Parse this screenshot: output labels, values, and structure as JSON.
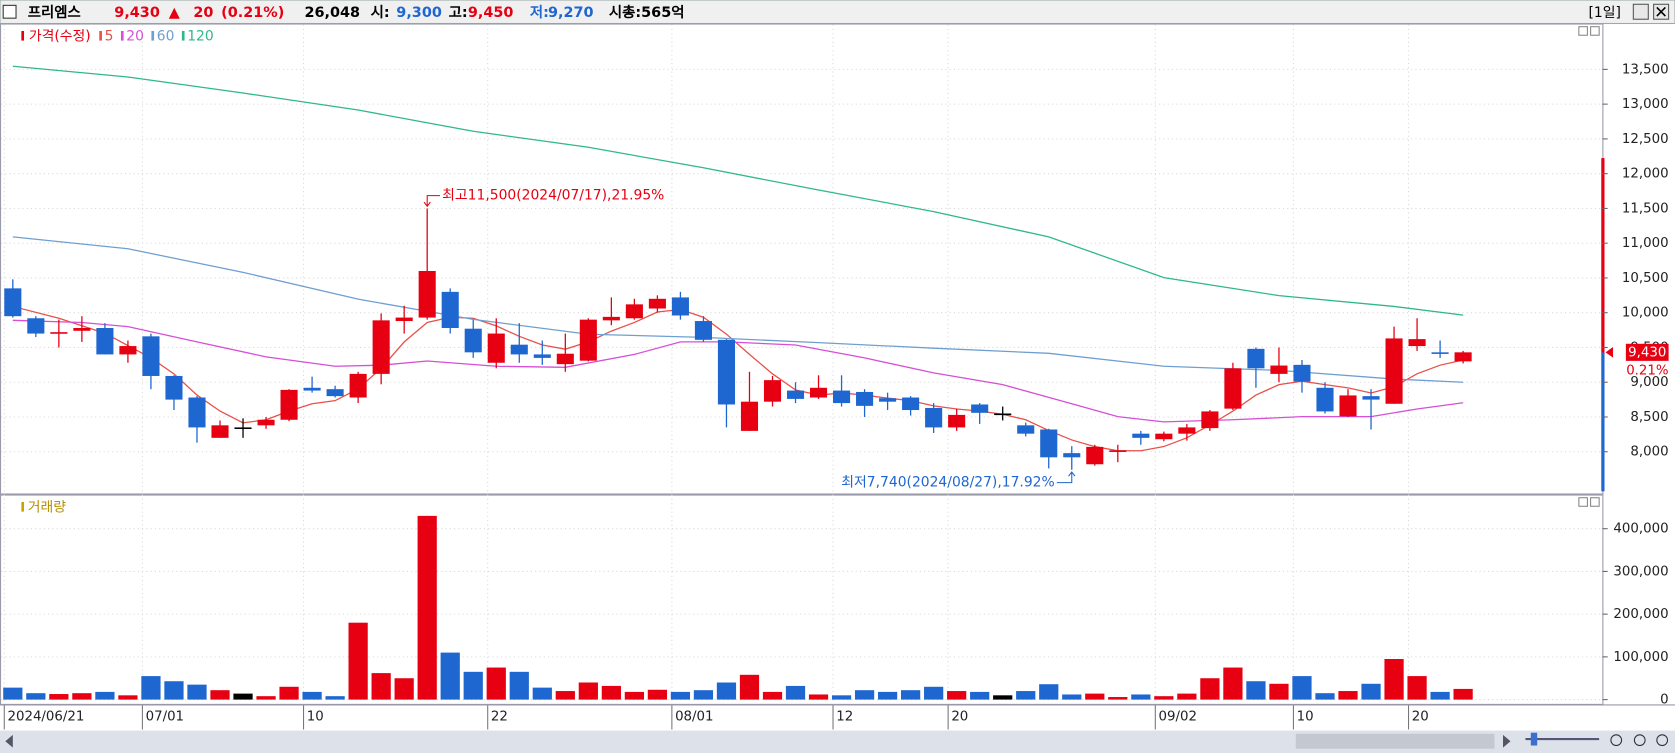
{
  "header": {
    "name": "프리엠스",
    "price": "9,430",
    "change_sign": "▲",
    "change": "20",
    "change_rate": "(0.21%)",
    "volume": "26,048",
    "open_label": "시:",
    "open": "9,300",
    "high_label": "고:",
    "high": "9,450",
    "low_label": "저:",
    "low": "9,270",
    "market_cap": "시총:565억",
    "period": "[1일]"
  },
  "chart_data": [
    {
      "type": "candlestick",
      "legend_title": "가격(수정)",
      "up_color": "#e60012",
      "down_color": "#1e66d0",
      "flat_color": "#000000",
      "open": [
        10350,
        9920,
        9700,
        9740,
        9780,
        9400,
        9660,
        9090,
        8780,
        8200,
        8350,
        8380,
        8460,
        8920,
        8900,
        8780,
        9120,
        9880,
        9930,
        10300,
        9770,
        9280,
        9540,
        9400,
        9260,
        9310,
        9890,
        9920,
        10060,
        10220,
        9880,
        9610,
        8300,
        8720,
        8880,
        8780,
        8880,
        8860,
        8770,
        8780,
        8630,
        8350,
        8680,
        8550,
        8380,
        8320,
        7980,
        7820,
        8000,
        8260,
        8180,
        8260,
        8340,
        8620,
        9480,
        9120,
        9250,
        8920,
        8510,
        8800,
        8690,
        9520,
        9430,
        9300
      ],
      "high": [
        10480,
        9950,
        9900,
        9950,
        9850,
        9600,
        9700,
        9100,
        8800,
        8450,
        8480,
        8500,
        8900,
        9080,
        8950,
        9150,
        9990,
        10100,
        11500,
        10350,
        9900,
        9920,
        9850,
        9600,
        9700,
        9920,
        10220,
        10200,
        10250,
        10300,
        9950,
        9620,
        9150,
        9090,
        9000,
        9100,
        9100,
        8900,
        8850,
        8800,
        8700,
        8620,
        8700,
        8650,
        8420,
        8330,
        8080,
        8100,
        8100,
        8300,
        8290,
        8400,
        8600,
        9280,
        9500,
        9500,
        9320,
        9000,
        8900,
        8900,
        9800,
        9920,
        9600,
        9450
      ],
      "low": [
        9930,
        9650,
        9500,
        9580,
        9400,
        9280,
        8900,
        8600,
        8130,
        8200,
        8200,
        8330,
        8440,
        8850,
        8780,
        8700,
        8970,
        9700,
        9900,
        9700,
        9350,
        9200,
        9280,
        9250,
        9150,
        9300,
        9820,
        9900,
        10000,
        9900,
        9580,
        8350,
        8300,
        8650,
        8700,
        8760,
        8650,
        8500,
        8600,
        8520,
        8270,
        8300,
        8400,
        8450,
        8220,
        7760,
        7740,
        7800,
        7850,
        8100,
        8150,
        8160,
        8300,
        8600,
        8920,
        9000,
        8850,
        8550,
        8500,
        8320,
        8690,
        9450,
        9350,
        9270
      ],
      "close": [
        9950,
        9700,
        9720,
        9780,
        9400,
        9520,
        9090,
        8750,
        8350,
        8380,
        8350,
        8460,
        8890,
        8880,
        8800,
        9120,
        9890,
        9930,
        10600,
        9780,
        9430,
        9700,
        9400,
        9350,
        9410,
        9900,
        9940,
        10120,
        10200,
        9960,
        9610,
        8680,
        8720,
        9030,
        8760,
        8920,
        8700,
        8660,
        8720,
        8600,
        8350,
        8530,
        8560,
        8550,
        8260,
        7920,
        7920,
        8070,
        8020,
        8200,
        8260,
        8350,
        8580,
        9200,
        9200,
        9240,
        9010,
        8580,
        8810,
        8750,
        9630,
        9620,
        9410,
        9430
      ],
      "lines": [
        {
          "name": "5",
          "color": "#e8504a",
          "x": [
            0,
            2,
            4,
            6,
            7,
            8,
            9,
            10,
            11,
            12,
            13,
            14,
            15,
            16,
            17,
            18,
            19,
            20,
            21,
            22,
            23,
            24,
            25,
            26,
            27,
            28,
            29,
            30,
            31,
            32,
            33,
            34,
            35,
            36,
            37,
            38,
            39,
            40,
            41,
            42,
            43,
            44,
            45,
            46,
            47,
            48,
            49,
            50,
            51,
            52,
            53,
            54,
            55,
            56,
            57,
            58,
            59,
            60,
            61,
            62,
            63
          ],
          "values": [
            10090,
            9920,
            9705,
            9350,
            9120,
            8815,
            8585,
            8415,
            8460,
            8585,
            8690,
            8735,
            8905,
            9200,
            9580,
            9860,
            9935,
            9920,
            9810,
            9660,
            9535,
            9475,
            9580,
            9735,
            9860,
            10010,
            10045,
            9935,
            9690,
            9400,
            9120,
            8890,
            8815,
            8845,
            8815,
            8770,
            8735,
            8660,
            8615,
            8585,
            8540,
            8460,
            8305,
            8170,
            8075,
            8015,
            8015,
            8075,
            8200,
            8385,
            8585,
            8815,
            8965,
            9015,
            8965,
            8920,
            8845,
            8935,
            9120,
            9245,
            9320
          ]
        },
        {
          "name": "20",
          "color": "#d64fd6",
          "x": [
            0,
            3,
            5,
            8,
            11,
            14,
            16,
            18,
            21,
            24,
            27,
            29,
            31,
            34,
            37,
            40,
            43,
            46,
            48,
            50,
            53,
            56,
            59,
            61,
            63
          ],
          "values": [
            9890,
            9860,
            9800,
            9580,
            9365,
            9230,
            9245,
            9305,
            9230,
            9215,
            9400,
            9580,
            9580,
            9535,
            9350,
            9135,
            8965,
            8690,
            8505,
            8430,
            8460,
            8505,
            8505,
            8615,
            8705
          ]
        },
        {
          "name": "60",
          "color": "#6f9fd0",
          "x": [
            0,
            5,
            10,
            15,
            20,
            25,
            30,
            35,
            40,
            45,
            50,
            55,
            60,
            63
          ],
          "values": [
            11090,
            10920,
            10580,
            10195,
            9905,
            9690,
            9645,
            9570,
            9490,
            9415,
            9230,
            9170,
            9045,
            9000
          ]
        },
        {
          "name": "120",
          "color": "#2fb88a",
          "x": [
            0,
            5,
            10,
            15,
            20,
            25,
            30,
            35,
            40,
            45,
            50,
            55,
            60,
            63
          ],
          "values": [
            13545,
            13390,
            13160,
            12915,
            12610,
            12380,
            12085,
            11765,
            11455,
            11090,
            10505,
            10245,
            10090,
            9965
          ]
        }
      ],
      "high_annotation": "최고11,500(2024/07/17),21.95%",
      "low_annotation": "최저7,740(2024/08/27),17.92%",
      "last_price_label": "9,430",
      "last_change_label": "0.21%",
      "ylim": [
        7400,
        14160
      ],
      "yticks": [
        {
          "value": 8000,
          "label": "8,000"
        },
        {
          "value": 8500,
          "label": "8,500"
        },
        {
          "value": 9000,
          "label": "9,000"
        },
        {
          "value": 9500,
          "label": "9,500"
        },
        {
          "value": 10000,
          "label": "10,000"
        },
        {
          "value": 10500,
          "label": "10,500"
        },
        {
          "value": 11000,
          "label": "11,000"
        },
        {
          "value": 11500,
          "label": "11,500"
        },
        {
          "value": 12000,
          "label": "12,000"
        },
        {
          "value": 12500,
          "label": "12,500"
        },
        {
          "value": 13000,
          "label": "13,000"
        },
        {
          "value": 13500,
          "label": "13,500"
        }
      ],
      "grid": true
    },
    {
      "type": "bar",
      "legend_title": "거래량",
      "categories": [
        "2024/06/21",
        null,
        null,
        null,
        null,
        null,
        "07/01",
        null,
        null,
        null,
        null,
        null,
        null,
        "10",
        null,
        null,
        null,
        null,
        null,
        null,
        null,
        "22",
        null,
        null,
        null,
        null,
        null,
        null,
        null,
        "08/01",
        null,
        null,
        null,
        null,
        null,
        null,
        "12",
        null,
        null,
        null,
        null,
        "20",
        null,
        null,
        null,
        null,
        null,
        null,
        null,
        null,
        "09/02",
        null,
        null,
        null,
        null,
        null,
        "10",
        null,
        null,
        null,
        null,
        "20",
        null,
        null
      ],
      "values": [
        28000,
        15000,
        13000,
        15000,
        18000,
        10000,
        55000,
        43000,
        35000,
        22000,
        14000,
        8000,
        30000,
        18000,
        8000,
        180000,
        62000,
        50000,
        430000,
        110000,
        65000,
        75000,
        65000,
        28000,
        20000,
        40000,
        32000,
        18000,
        23000,
        18000,
        22000,
        40000,
        58000,
        18000,
        32000,
        12000,
        10000,
        22000,
        18000,
        22000,
        30000,
        20000,
        18000,
        10000,
        20000,
        36000,
        12000,
        14000,
        6000,
        12000,
        8000,
        14000,
        50000,
        75000,
        43000,
        37000,
        55000,
        15000,
        20000,
        37000,
        95000,
        55000,
        18000,
        25000
      ],
      "ylim": [
        0,
        460000
      ],
      "yticks": [
        0,
        {
          "value": 100000,
          "label": "100,000"
        },
        {
          "value": 200000,
          "label": "200,000"
        },
        {
          "value": 300000,
          "label": "300,000"
        },
        {
          "value": 400000,
          "label": "400,000"
        }
      ],
      "grid": true
    }
  ]
}
